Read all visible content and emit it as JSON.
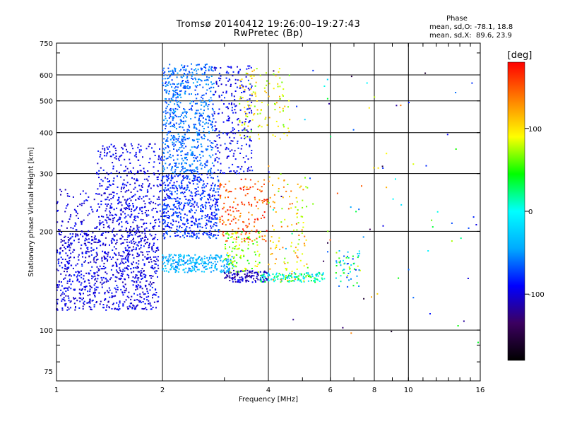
{
  "header": {
    "title_line1": "Tromsø 20140412 19:26:00–19:27:43",
    "title_line2": "RwPretec (Bp)"
  },
  "phase_box": {
    "title": "Phase",
    "line_o": "mean, sd,O: -78.1, 18.8",
    "line_x": "mean, sd,X:  89.6, 23.9"
  },
  "colorbar": {
    "unit_label": "[deg]",
    "ticks": [
      {
        "value": 100,
        "label": "100"
      },
      {
        "value": 0,
        "label": "0"
      },
      {
        "value": -100,
        "label": "-100"
      }
    ],
    "range": [
      -180,
      180
    ],
    "colormap": [
      "#000000",
      "#3c0060",
      "#0000ff",
      "#00aaff",
      "#00ffff",
      "#00ff00",
      "#ffff00",
      "#ff8000",
      "#ff0000"
    ]
  },
  "chart_data": {
    "type": "scatter",
    "xlabel": "Frequency [MHz]",
    "ylabel": "Stationary phase Virtual Height [km]",
    "xscale": "log",
    "yscale": "log",
    "xlim": [
      1,
      16
    ],
    "ylim": [
      70,
      750
    ],
    "x_ticks": [
      1,
      2,
      4,
      6,
      8,
      10,
      16
    ],
    "x_tick_labels": [
      "1",
      "2",
      "4",
      "6",
      "8",
      "10",
      "16"
    ],
    "y_ticks": [
      75,
      100,
      200,
      300,
      400,
      500,
      600,
      750
    ],
    "y_tick_labels": [
      "75",
      "100",
      "200",
      "300",
      "400",
      "500",
      "600",
      "750"
    ],
    "grid": true,
    "color_by": "phase [deg]",
    "clusters": [
      {
        "x": [
          1.0,
          1.95
        ],
        "y": [
          115,
          200
        ],
        "phase": [
          -115,
          -80
        ],
        "n": 900
      },
      {
        "x": [
          1.3,
          2.0
        ],
        "y": [
          200,
          370
        ],
        "phase": [
          -110,
          -80
        ],
        "n": 380
      },
      {
        "x": [
          1.0,
          1.7
        ],
        "y": [
          200,
          270
        ],
        "phase": [
          -115,
          -85
        ],
        "n": 140
      },
      {
        "x": [
          2.0,
          2.9
        ],
        "y": [
          190,
          300
        ],
        "phase": [
          -100,
          -60
        ],
        "n": 550
      },
      {
        "x": [
          2.0,
          2.8
        ],
        "y": [
          300,
          650
        ],
        "phase": [
          -80,
          -45
        ],
        "n": 650
      },
      {
        "x": [
          2.8,
          3.6
        ],
        "y": [
          300,
          640
        ],
        "phase": [
          -110,
          -75
        ],
        "n": 250
      },
      {
        "x": [
          3.3,
          4.6
        ],
        "y": [
          380,
          630
        ],
        "phase": [
          60,
          120
        ],
        "n": 120
      },
      {
        "x": [
          2.9,
          4.0
        ],
        "y": [
          185,
          290
        ],
        "phase": [
          120,
          180
        ],
        "n": 160
      },
      {
        "x": [
          2.0,
          3.2
        ],
        "y": [
          150,
          170
        ],
        "phase": [
          -60,
          -20
        ],
        "n": 260
      },
      {
        "x": [
          3.0,
          4.0
        ],
        "y": [
          140,
          152
        ],
        "phase": [
          -130,
          -90
        ],
        "n": 120
      },
      {
        "x": [
          3.0,
          3.8
        ],
        "y": [
          150,
          200
        ],
        "phase": [
          40,
          100
        ],
        "n": 100
      },
      {
        "x": [
          3.8,
          5.8
        ],
        "y": [
          140,
          150
        ],
        "phase": [
          -40,
          60
        ],
        "n": 130
      },
      {
        "x": [
          4.0,
          5.2
        ],
        "y": [
          140,
          300
        ],
        "phase": [
          60,
          150
        ],
        "n": 120
      },
      {
        "x": [
          6.2,
          7.3
        ],
        "y": [
          135,
          175
        ],
        "phase": [
          -90,
          90
        ],
        "n": 60
      },
      {
        "x": [
          4.0,
          16.0
        ],
        "y": [
          90,
          620
        ],
        "phase": [
          -170,
          170
        ],
        "n": 80
      }
    ]
  }
}
